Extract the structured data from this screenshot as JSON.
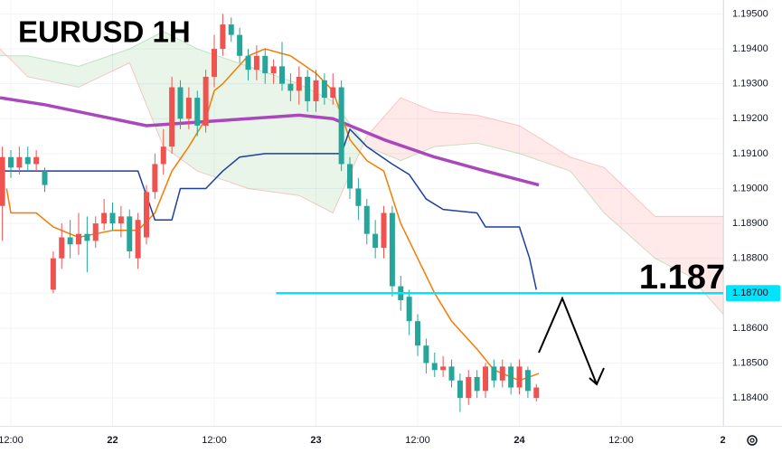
{
  "chart_data": {
    "type": "candlestick",
    "title": "EURUSD 1H",
    "xlim": [
      -1.28,
      84.05
    ],
    "ylim": [
      1.1832,
      1.1954
    ],
    "xticks": [
      {
        "value": 0,
        "label": "12:00"
      },
      {
        "value": 12,
        "label": "22"
      },
      {
        "value": 24,
        "label": "12:00"
      },
      {
        "value": 36,
        "label": "23"
      },
      {
        "value": 48,
        "label": "12:00"
      },
      {
        "value": 60,
        "label": "24"
      },
      {
        "value": 72,
        "label": "12:00"
      },
      {
        "value": 84,
        "label": "2"
      }
    ],
    "yticks": [
      {
        "value": 1.184,
        "label": "1.18400"
      },
      {
        "value": 1.185,
        "label": "1.18500"
      },
      {
        "value": 1.186,
        "label": "1.18600"
      },
      {
        "value": 1.187,
        "label": "1.18700"
      },
      {
        "value": 1.188,
        "label": "1.18800"
      },
      {
        "value": 1.189,
        "label": "1.18900"
      },
      {
        "value": 1.19,
        "label": "1.19000"
      },
      {
        "value": 1.191,
        "label": "1.19100"
      },
      {
        "value": 1.192,
        "label": "1.19200"
      },
      {
        "value": 1.193,
        "label": "1.19300"
      },
      {
        "value": 1.194,
        "label": "1.19400"
      },
      {
        "value": 1.195,
        "label": "1.19500"
      }
    ],
    "up_color": "#ef5350",
    "down_color": "#26a69a",
    "candles": {
      "x": [
        -1,
        0,
        1,
        2,
        3,
        4,
        5,
        6,
        7,
        8,
        9,
        10,
        11,
        12,
        13,
        14,
        15,
        16,
        17,
        18,
        19,
        20,
        21,
        22,
        23,
        24,
        25,
        26,
        27,
        28,
        29,
        30,
        31,
        32,
        33,
        34,
        35,
        36,
        37,
        38,
        39,
        40,
        41,
        42,
        43,
        44,
        45,
        46,
        47,
        48,
        49,
        50,
        51,
        52,
        53,
        54,
        55,
        56,
        57,
        58,
        59,
        60,
        61,
        62
      ],
      "open": [
        1.1895,
        1.1909,
        1.1906,
        1.1909,
        1.1907,
        1.1905,
        1.1871,
        1.188,
        1.1886,
        1.1884,
        1.1887,
        1.1885,
        1.189,
        1.1893,
        1.189,
        1.1892,
        1.188,
        1.1886,
        1.1899,
        1.1907,
        1.1912,
        1.1929,
        1.192,
        1.1926,
        1.1918,
        1.1932,
        1.194,
        1.1947,
        1.1944,
        1.1938,
        1.1934,
        1.1938,
        1.1933,
        1.1935,
        1.193,
        1.1928,
        1.1932,
        1.1925,
        1.1931,
        1.1926,
        1.1929,
        1.1907,
        1.19,
        1.1895,
        1.1887,
        1.1883,
        1.1893,
        1.1872,
        1.1869,
        1.1862,
        1.1855,
        1.185,
        1.1848,
        1.1849,
        1.1845,
        1.184,
        1.1846,
        1.1842,
        1.1849,
        1.1845,
        1.1849,
        1.1843,
        1.1848,
        1.184
      ],
      "high": [
        1.1912,
        1.1911,
        1.1912,
        1.1912,
        1.1911,
        1.1906,
        1.1882,
        1.189,
        1.1891,
        1.1893,
        1.1892,
        1.1892,
        1.1897,
        1.1896,
        1.1895,
        1.1894,
        1.1893,
        1.1901,
        1.191,
        1.1917,
        1.1932,
        1.1931,
        1.1929,
        1.1928,
        1.1934,
        1.1944,
        1.195,
        1.1949,
        1.1946,
        1.194,
        1.1941,
        1.194,
        1.1937,
        1.1942,
        1.1933,
        1.1935,
        1.1934,
        1.1934,
        1.1933,
        1.1933,
        1.1931,
        1.1909,
        1.1903,
        1.1897,
        1.1891,
        1.1895,
        1.1895,
        1.1875,
        1.1871,
        1.1864,
        1.1857,
        1.1853,
        1.1852,
        1.1851,
        1.1847,
        1.1848,
        1.1848,
        1.185,
        1.1851,
        1.1851,
        1.185,
        1.1851,
        1.1849,
        1.1844
      ],
      "low": [
        1.1885,
        1.1903,
        1.1904,
        1.1905,
        1.1905,
        1.1899,
        1.187,
        1.1877,
        1.188,
        1.1881,
        1.1876,
        1.1883,
        1.1888,
        1.1888,
        1.1886,
        1.188,
        1.1877,
        1.1884,
        1.1897,
        1.1904,
        1.191,
        1.1917,
        1.1917,
        1.1915,
        1.1916,
        1.1929,
        1.1938,
        1.1942,
        1.1936,
        1.1931,
        1.1931,
        1.193,
        1.193,
        1.1928,
        1.1925,
        1.1924,
        1.1922,
        1.1922,
        1.1924,
        1.1924,
        1.1905,
        1.1897,
        1.1891,
        1.1884,
        1.188,
        1.188,
        1.1869,
        1.1865,
        1.1858,
        1.1852,
        1.1847,
        1.1846,
        1.1846,
        1.1843,
        1.1836,
        1.1838,
        1.184,
        1.184,
        1.1843,
        1.1843,
        1.1841,
        1.1841,
        1.184,
        1.1839
      ],
      "close": [
        1.1909,
        1.1906,
        1.1909,
        1.1907,
        1.1909,
        1.1901,
        1.188,
        1.1886,
        1.1884,
        1.1887,
        1.1885,
        1.189,
        1.1893,
        1.189,
        1.1892,
        1.1882,
        1.1891,
        1.1899,
        1.1907,
        1.1912,
        1.1929,
        1.192,
        1.1926,
        1.1918,
        1.1932,
        1.194,
        1.1947,
        1.1944,
        1.1938,
        1.1934,
        1.1938,
        1.1933,
        1.1935,
        1.193,
        1.1928,
        1.1932,
        1.1925,
        1.1931,
        1.1926,
        1.1929,
        1.1907,
        1.19,
        1.1895,
        1.1887,
        1.1883,
        1.1893,
        1.1872,
        1.1868,
        1.1862,
        1.1855,
        1.185,
        1.1848,
        1.1849,
        1.1845,
        1.184,
        1.1846,
        1.1842,
        1.1849,
        1.1845,
        1.1849,
        1.1843,
        1.1849,
        1.1842,
        1.1843
      ]
    },
    "cloud": {
      "x": [
        -1.28,
        2,
        8,
        14,
        18,
        22,
        28,
        34,
        38,
        42,
        46,
        50,
        55,
        60,
        66,
        70,
        76,
        80,
        84.05
      ],
      "span_a": [
        1.1938,
        1.1938,
        1.1935,
        1.194,
        1.1945,
        1.194,
        1.1935,
        1.193,
        1.1925,
        1.1912,
        1.1908,
        1.1912,
        1.1913,
        1.191,
        1.1905,
        1.1893,
        1.188,
        1.1875,
        1.1864
      ],
      "span_b": [
        1.194,
        1.1932,
        1.1929,
        1.1936,
        1.1912,
        1.1905,
        1.19,
        1.1898,
        1.1893,
        1.1915,
        1.1926,
        1.1922,
        1.1921,
        1.1918,
        1.1909,
        1.1906,
        1.1892,
        1.1892,
        1.1892
      ],
      "up_color": "#4caf50",
      "down_color": "#ff5252"
    },
    "lines": [
      {
        "color": "#ab47bc",
        "width": 3.5,
        "x": [
          -1.28,
          4,
          10,
          16,
          22,
          28,
          34,
          38,
          44,
          50,
          56,
          62.3
        ],
        "values": [
          1.1926,
          1.1924,
          1.1921,
          1.1918,
          1.1919,
          1.192,
          1.1921,
          1.192,
          1.1914,
          1.1909,
          1.1905,
          1.1901
        ]
      },
      {
        "color": "#f57c00",
        "width": 1.5,
        "x": [
          -0.5,
          0,
          3,
          5,
          8,
          10,
          12,
          15,
          17,
          19,
          21,
          23,
          24,
          25,
          28,
          30,
          33,
          36,
          38,
          40,
          42,
          44,
          46,
          48,
          50,
          52,
          55,
          57,
          60,
          62.3
        ],
        "values": [
          1.19,
          1.1893,
          1.1893,
          1.1889,
          1.1886,
          1.1887,
          1.1888,
          1.1888,
          1.1893,
          1.1905,
          1.1912,
          1.192,
          1.1928,
          1.193,
          1.1938,
          1.194,
          1.1938,
          1.1933,
          1.1928,
          1.1914,
          1.1908,
          1.1905,
          1.189,
          1.188,
          1.187,
          1.1862,
          1.1854,
          1.1848,
          1.1845,
          1.1847
        ]
      },
      {
        "color": "#1e3f9e",
        "width": 1.5,
        "x": [
          -1,
          15,
          17,
          19,
          20,
          23,
          25,
          27,
          30,
          39,
          40,
          42,
          45,
          47,
          49,
          51,
          55,
          56,
          60,
          61.2,
          62
        ],
        "values": [
          1.1905,
          1.1905,
          1.1891,
          1.1891,
          1.19,
          1.19,
          1.1905,
          1.1909,
          1.191,
          1.191,
          1.1917,
          1.1912,
          1.1907,
          1.1904,
          1.1897,
          1.1894,
          1.1893,
          1.1889,
          1.1889,
          1.188,
          1.1871
        ]
      }
    ],
    "level": {
      "value": 1.187,
      "label": "1.187",
      "from_x": 31.3,
      "color": "#00e5ff"
    }
  }
}
